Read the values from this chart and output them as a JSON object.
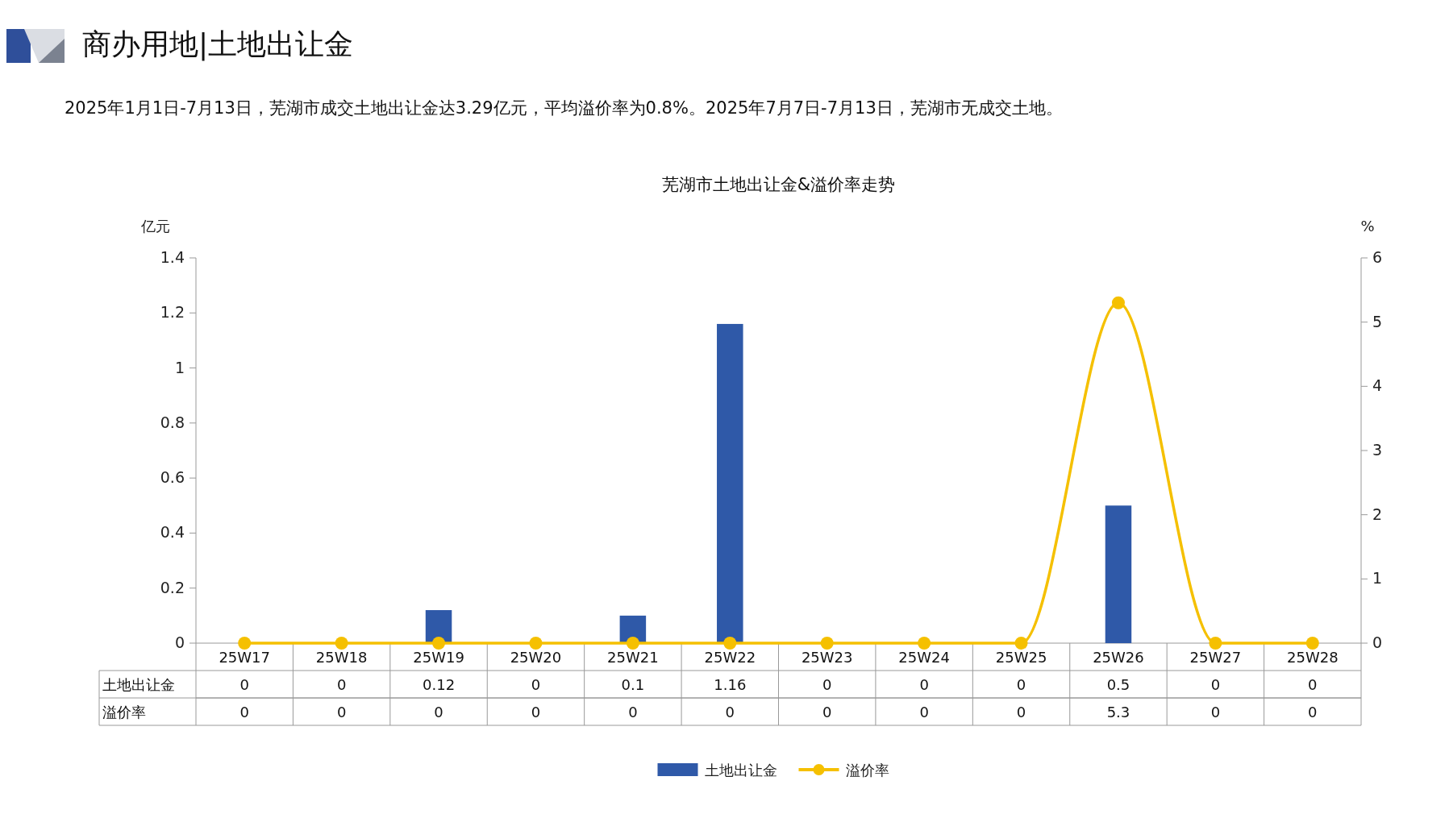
{
  "chart_data": {
    "type": "bar",
    "title": "芜湖市土地出让金&溢价率走势",
    "subtitle": "2025年1月1日-7月13日，芜湖市成交土地出让金达3.29亿元，平均溢价率为0.8%。2025年7月7日-7月13日，芜湖市无成交土地。",
    "annotations": [
      "商办用地|土地出让金"
    ],
    "ylabel": "亿元",
    "y2label": "%",
    "categories": [
      "25W17",
      "25W18",
      "25W19",
      "25W20",
      "25W21",
      "25W22",
      "25W23",
      "25W24",
      "25W25",
      "25W26",
      "25W27",
      "25W28"
    ],
    "series": [
      {
        "name": "土地出让金",
        "color": "#2f59a8",
        "values": [
          0,
          0,
          0.12,
          0,
          0.1,
          1.16,
          0,
          0,
          0,
          0.5,
          0,
          0
        ]
      },
      {
        "name": "溢价率",
        "type": "line",
        "axis": "y2",
        "color": "#f5c000",
        "marker": "circle",
        "values": [
          0,
          0,
          0,
          0,
          0,
          0,
          0,
          0,
          0,
          5.3,
          0,
          0
        ]
      }
    ],
    "ylim": [
      0,
      1.4
    ],
    "yticks": [
      0,
      0.2,
      0.4,
      0.6,
      0.8,
      1,
      1.2,
      1.4
    ],
    "y2lim": [
      0,
      6
    ],
    "y2ticks": [
      0,
      1,
      2,
      3,
      4,
      5,
      6
    ],
    "data_labels": true,
    "legend": "bottom",
    "grid": false
  }
}
